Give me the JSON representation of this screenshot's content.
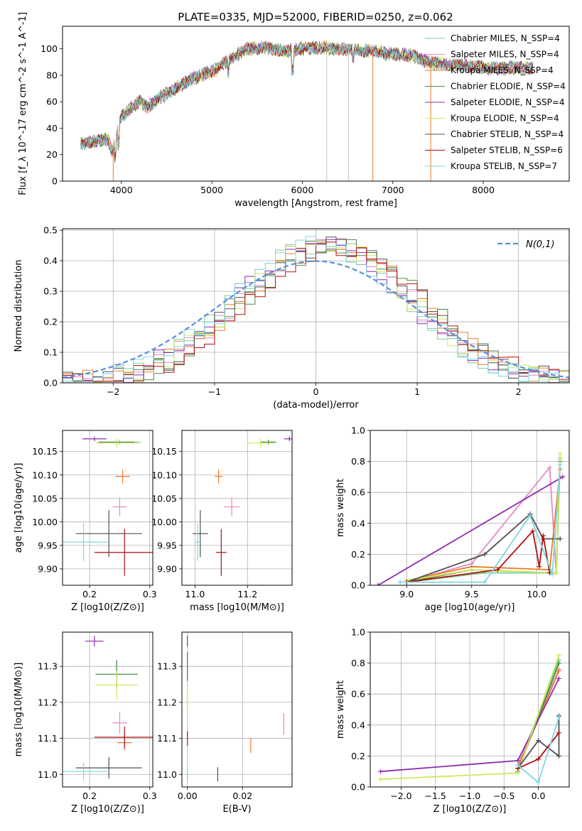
{
  "figure_title": "PLATE=0335, MJD=52000, FIBERID=0250, z=0.062",
  "colors": {
    "Chabrier MILES": "#7fcf9b",
    "Salpeter MILES": "#e48ac4",
    "Kroupa MILES": "#e87b2a",
    "Chabrier ELODIE": "#4a8a4a",
    "Salpeter ELODIE": "#8e2bb0",
    "Kroupa ELODIE": "#cfe85a",
    "Chabrier STELIB": "#505050",
    "Salpeter STELIB": "#b01010",
    "Kroupa STELIB": "#7fd6e0",
    "normal": "#5b8fd8"
  },
  "chart_data": [
    {
      "id": "spectrum",
      "type": "line",
      "title": "PLATE=0335, MJD=52000, FIBERID=0250, z=0.062",
      "xlabel": "wavelength [Angstrom, rest frame]",
      "ylabel": "Flux [f_λ 10^-17 erg cm^-2 s^-1 A^-1]",
      "xlim": [
        3350,
        8950
      ],
      "ylim": [
        0,
        117
      ],
      "xticks": [
        "4000",
        "5000",
        "6000",
        "7000",
        "8000"
      ],
      "yticks": [
        "0",
        "20",
        "40",
        "60",
        "80",
        "100"
      ],
      "grid": false,
      "legend": "top-right",
      "legend_entries": [
        "Chabrier MILES, N_SSP=4",
        "Salpeter MILES, N_SSP=4",
        "Kroupa MILES, N_SSP=4",
        "Chabrier ELODIE, N_SSP=4",
        "Salpeter ELODIE, N_SSP=4",
        "Kroupa ELODIE, N_SSP=4",
        "Chabrier STELIB, N_SSP=4",
        "Salpeter STELIB, N_SSP=6",
        "Kroupa STELIB, N_SSP=7"
      ],
      "continuum": {
        "x": [
          3550,
          3700,
          3850,
          3900,
          3950,
          4000,
          4100,
          4200,
          4300,
          4400,
          4600,
          4800,
          5000,
          5200,
          5400,
          5600,
          5800,
          6000,
          6200,
          6400,
          6600,
          6800,
          7000,
          7200,
          7400,
          7600,
          7800,
          8000,
          8200,
          8400,
          8550
        ],
        "y": [
          28,
          30,
          32,
          22,
          35,
          48,
          55,
          60,
          56,
          62,
          70,
          78,
          83,
          92,
          100,
          101,
          98,
          100,
          101,
          100,
          99,
          98,
          96,
          95,
          90,
          88,
          87,
          86,
          85,
          86,
          85
        ]
      },
      "artifact_lines": [
        {
          "x": 3910,
          "color": "#e87b2a"
        },
        {
          "x": 6270,
          "color": "#c0c0c0"
        },
        {
          "x": 6510,
          "color": "#c0c0c0"
        },
        {
          "x": 6780,
          "color": "#e87b2a"
        },
        {
          "x": 7420,
          "color": "#e87b2a"
        }
      ]
    },
    {
      "id": "residuals",
      "type": "bar",
      "xlabel": "(data-model)/error",
      "ylabel": "Normed distribution",
      "xlim": [
        -2.5,
        2.5
      ],
      "ylim": [
        0,
        0.505
      ],
      "xticks": [
        "−2",
        "−1",
        "0",
        "1",
        "2"
      ],
      "yticks": [
        "0.0",
        "0.1",
        "0.2",
        "0.3",
        "0.4",
        "0.5"
      ],
      "grid": true,
      "legend": "top-right",
      "normal_label": "N(0,1)",
      "bin_width": 0.1
    },
    {
      "id": "age_vs_Z",
      "type": "scatter",
      "xlabel": "Z [log10(Z/Z⊙)]",
      "ylabel": "age  [log10(age/yr)]",
      "xlim": [
        0.155,
        0.305
      ],
      "ylim": [
        9.865,
        10.195
      ],
      "xticks": [
        "0.2",
        "0.3"
      ],
      "yticks": [
        "9.90",
        "9.95",
        "10.00",
        "10.05",
        "10.10",
        "10.15"
      ],
      "grid": true,
      "points": [
        {
          "series": "Chabrier MILES",
          "x": 0.25,
          "y": 10.17,
          "xerr": 0.035,
          "yerr": 0.005
        },
        {
          "series": "Salpeter MILES",
          "x": 0.25,
          "y": 10.032,
          "xerr": 0.012,
          "yerr": 0.02
        },
        {
          "series": "Kroupa MILES",
          "x": 0.255,
          "y": 10.097,
          "xerr": 0.012,
          "yerr": 0.015
        },
        {
          "series": "Chabrier ELODIE",
          "x": 0.245,
          "y": 10.17,
          "xerr": 0.03,
          "yerr": 0.005
        },
        {
          "series": "Salpeter ELODIE",
          "x": 0.208,
          "y": 10.177,
          "xerr": 0.02,
          "yerr": 0.005
        },
        {
          "series": "Kroupa ELODIE",
          "x": 0.245,
          "y": 10.168,
          "xerr": 0.035,
          "yerr": 0.01
        },
        {
          "series": "Chabrier STELIB",
          "x": 0.232,
          "y": 9.975,
          "xerr": 0.055,
          "yerr": 0.05
        },
        {
          "series": "Salpeter STELIB",
          "x": 0.258,
          "y": 9.935,
          "xerr": 0.05,
          "yerr": 0.05
        },
        {
          "series": "Kroupa STELIB",
          "x": 0.19,
          "y": 9.957,
          "xerr": 0.04,
          "yerr": 0.04
        }
      ]
    },
    {
      "id": "age_vs_mass",
      "type": "scatter",
      "xlabel": "mass [log10(M/M⊙)]",
      "ylabel": "",
      "xlim": [
        10.95,
        11.37
      ],
      "ylim": [
        9.865,
        10.195
      ],
      "xticks": [
        "11.0",
        "11.2"
      ],
      "yticks": [
        "9.90",
        "9.95",
        "10.00",
        "10.05",
        "10.10",
        "10.15"
      ],
      "grid": true,
      "points": [
        {
          "series": "Chabrier MILES",
          "x": 11.28,
          "y": 10.17,
          "xerr": 0.03,
          "yerr": 0.005
        },
        {
          "series": "Salpeter MILES",
          "x": 11.14,
          "y": 10.032,
          "xerr": 0.03,
          "yerr": 0.02
        },
        {
          "series": "Kroupa MILES",
          "x": 11.09,
          "y": 10.097,
          "xerr": 0.015,
          "yerr": 0.015
        },
        {
          "series": "Chabrier ELODIE",
          "x": 11.28,
          "y": 10.17,
          "xerr": 0.03,
          "yerr": 0.005
        },
        {
          "series": "Salpeter ELODIE",
          "x": 11.36,
          "y": 10.177,
          "xerr": 0.02,
          "yerr": 0.005
        },
        {
          "series": "Kroupa ELODIE",
          "x": 11.25,
          "y": 10.168,
          "xerr": 0.05,
          "yerr": 0.01
        },
        {
          "series": "Chabrier STELIB",
          "x": 11.02,
          "y": 9.975,
          "xerr": 0.03,
          "yerr": 0.05
        },
        {
          "series": "Salpeter STELIB",
          "x": 11.1,
          "y": 9.935,
          "xerr": 0.02,
          "yerr": 0.05
        },
        {
          "series": "Kroupa STELIB",
          "x": 11.01,
          "y": 9.957,
          "xerr": 0.01,
          "yerr": 0.04
        }
      ]
    },
    {
      "id": "weight_vs_age",
      "type": "line",
      "xlabel": "age  [log10(age/yr)]",
      "ylabel": "mass weight",
      "xlim": [
        8.72,
        10.25
      ],
      "ylim": [
        0,
        1
      ],
      "xticks": [
        "9.0",
        "9.5",
        "10.0"
      ],
      "yticks": [
        "0.0",
        "0.2",
        "0.4",
        "0.6",
        "0.8",
        "1.0"
      ],
      "grid": true,
      "series": [
        {
          "name": "Chabrier MILES",
          "x": [
            9.0,
            9.6,
            10.15,
            10.18
          ],
          "y": [
            0.02,
            0.08,
            0.08,
            0.82
          ]
        },
        {
          "name": "Salpeter MILES",
          "x": [
            9.0,
            9.5,
            10.1,
            10.15
          ],
          "y": [
            0.02,
            0.14,
            0.76,
            0.08
          ]
        },
        {
          "name": "Kroupa MILES",
          "x": [
            9.0,
            9.5,
            10.1,
            10.18
          ],
          "y": [
            0.03,
            0.12,
            0.1,
            0.75
          ]
        },
        {
          "name": "Chabrier ELODIE",
          "x": [
            9.0,
            9.5,
            10.15,
            10.18
          ],
          "y": [
            0.02,
            0.1,
            0.08,
            0.8
          ]
        },
        {
          "name": "Salpeter ELODIE",
          "x": [
            8.78,
            10.2
          ],
          "y": [
            0.0,
            0.7
          ]
        },
        {
          "name": "Kroupa ELODIE",
          "x": [
            9.0,
            9.5,
            10.15,
            10.18
          ],
          "y": [
            0.03,
            0.1,
            0.08,
            0.85
          ]
        },
        {
          "name": "Chabrier STELIB",
          "x": [
            9.0,
            9.6,
            9.95,
            10.05,
            10.18
          ],
          "y": [
            0.02,
            0.2,
            0.46,
            0.3,
            0.3
          ]
        },
        {
          "name": "Salpeter STELIB",
          "x": [
            9.0,
            9.7,
            9.97,
            10.02,
            10.05,
            10.1
          ],
          "y": [
            0.02,
            0.1,
            0.35,
            0.12,
            0.32,
            0.08
          ]
        },
        {
          "name": "Kroupa STELIB",
          "x": [
            8.95,
            9.6,
            9.95,
            10.12,
            10.18
          ],
          "y": [
            0.02,
            0.02,
            0.45,
            0.07,
            0.78
          ]
        }
      ]
    },
    {
      "id": "mass_vs_Z",
      "type": "scatter",
      "xlabel": "Z [log10(Z/Z⊙)]",
      "ylabel": "mass [log10(M/M⊙)]",
      "xlim": [
        0.155,
        0.305
      ],
      "ylim": [
        10.965,
        11.395
      ],
      "xticks": [
        "0.2",
        "0.3"
      ],
      "yticks": [
        "11.0",
        "11.1",
        "11.2",
        "11.3"
      ],
      "grid": true,
      "points": [
        {
          "series": "Chabrier MILES",
          "x": 0.245,
          "y": 11.278,
          "xerr": 0.035,
          "yerr": 0.04
        },
        {
          "series": "Salpeter MILES",
          "x": 0.25,
          "y": 11.143,
          "xerr": 0.012,
          "yerr": 0.03
        },
        {
          "series": "Kroupa MILES",
          "x": 0.258,
          "y": 11.088,
          "xerr": 0.012,
          "yerr": 0.02
        },
        {
          "series": "Chabrier ELODIE",
          "x": 0.245,
          "y": 11.278,
          "xerr": 0.035,
          "yerr": 0.04
        },
        {
          "series": "Salpeter ELODIE",
          "x": 0.208,
          "y": 11.37,
          "xerr": 0.015,
          "yerr": 0.015
        },
        {
          "series": "Kroupa ELODIE",
          "x": 0.245,
          "y": 11.248,
          "xerr": 0.035,
          "yerr": 0.04
        },
        {
          "series": "Chabrier STELIB",
          "x": 0.232,
          "y": 11.018,
          "xerr": 0.055,
          "yerr": 0.03
        },
        {
          "series": "Salpeter STELIB",
          "x": 0.258,
          "y": 11.103,
          "xerr": 0.05,
          "yerr": 0.03
        },
        {
          "series": "Kroupa STELIB",
          "x": 0.19,
          "y": 11.008,
          "xerr": 0.04,
          "yerr": 0.025
        }
      ]
    },
    {
      "id": "mass_vs_EBV",
      "type": "scatter",
      "xlabel": "E(B-V)",
      "ylabel": "",
      "xlim": [
        -0.002,
        0.038
      ],
      "ylim": [
        10.965,
        11.395
      ],
      "xticks": [
        "0.00",
        "0.02"
      ],
      "yticks": [
        "11.0",
        "11.1",
        "11.2",
        "11.3"
      ],
      "grid": true,
      "points": [
        {
          "series": "Chabrier MILES",
          "x": 0.0,
          "y": 11.3,
          "xerr": 0,
          "yerr": 0.04
        },
        {
          "series": "Salpeter MILES",
          "x": 0.035,
          "y": 11.14,
          "xerr": 0,
          "yerr": 0.03
        },
        {
          "series": "Kroupa MILES",
          "x": 0.023,
          "y": 11.08,
          "xerr": 0,
          "yerr": 0.02
        },
        {
          "series": "Chabrier ELODIE",
          "x": 0.0,
          "y": 11.3,
          "xerr": 0,
          "yerr": 0.04
        },
        {
          "series": "Salpeter ELODIE",
          "x": 0.0,
          "y": 11.37,
          "xerr": 0,
          "yerr": 0.015
        },
        {
          "series": "Kroupa ELODIE",
          "x": 0.0,
          "y": 11.21,
          "xerr": 0,
          "yerr": 0.04
        },
        {
          "series": "Chabrier STELIB",
          "x": 0.011,
          "y": 11.0,
          "xerr": 0,
          "yerr": 0.02
        },
        {
          "series": "Salpeter STELIB",
          "x": 0.0,
          "y": 11.1,
          "xerr": 0,
          "yerr": 0.02
        },
        {
          "series": "Kroupa STELIB",
          "x": 0.0,
          "y": 11.0,
          "xerr": 0,
          "yerr": 0.02
        }
      ]
    },
    {
      "id": "weight_vs_Z",
      "type": "line",
      "xlabel": "Z [log10(Z/Z⊙)]",
      "ylabel": "mass weight",
      "xlim": [
        -2.45,
        0.45
      ],
      "ylim": [
        0,
        1
      ],
      "xticks": [
        "−2.0",
        "−1.5",
        "−1.0",
        "−0.5",
        "0.0"
      ],
      "yticks": [
        "0.0",
        "0.2",
        "0.4",
        "0.6",
        "0.8",
        "1.0"
      ],
      "grid": true,
      "series": [
        {
          "name": "Chabrier MILES",
          "x": [
            -0.3,
            0.3
          ],
          "y": [
            0.12,
            0.82
          ]
        },
        {
          "name": "Salpeter MILES",
          "x": [
            -0.3,
            0.3
          ],
          "y": [
            0.14,
            0.76
          ]
        },
        {
          "name": "Kroupa MILES",
          "x": [
            -0.3,
            0.3
          ],
          "y": [
            0.12,
            0.75
          ]
        },
        {
          "name": "Chabrier ELODIE",
          "x": [
            -0.3,
            0.3
          ],
          "y": [
            0.1,
            0.8
          ]
        },
        {
          "name": "Salpeter ELODIE",
          "x": [
            -2.3,
            -0.3,
            0.3
          ],
          "y": [
            0.1,
            0.17,
            0.7
          ]
        },
        {
          "name": "Kroupa ELODIE",
          "x": [
            -2.3,
            -0.3,
            0.3
          ],
          "y": [
            0.05,
            0.09,
            0.85
          ]
        },
        {
          "name": "Chabrier STELIB",
          "x": [
            -0.3,
            0.0,
            0.3,
            0.3
          ],
          "y": [
            0.12,
            0.3,
            0.2,
            0.46
          ]
        },
        {
          "name": "Salpeter STELIB",
          "x": [
            -0.3,
            0.0,
            0.3
          ],
          "y": [
            0.12,
            0.18,
            0.35
          ]
        },
        {
          "name": "Kroupa STELIB",
          "x": [
            -0.3,
            0.0,
            0.3
          ],
          "y": [
            0.14,
            0.03,
            0.45
          ]
        }
      ]
    }
  ]
}
